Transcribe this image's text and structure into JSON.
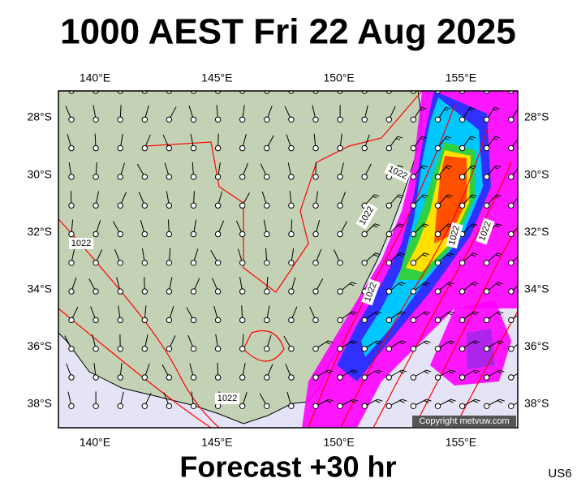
{
  "map": {
    "title": "1000 AEST Fri 22 Aug 2025",
    "footer": "Forecast +30 hr",
    "corner": "US6",
    "copyright": "Copyright metvuw.com",
    "lon_labels": [
      "140°E",
      "145°E",
      "150°E",
      "155°E"
    ],
    "lat_labels": [
      "28°S",
      "30°S",
      "32°S",
      "34°S",
      "36°S",
      "38°S"
    ],
    "isobar_labels": [
      "1022",
      "1022",
      "1022",
      "1022",
      "1022",
      "1022",
      "1022"
    ]
  }
}
